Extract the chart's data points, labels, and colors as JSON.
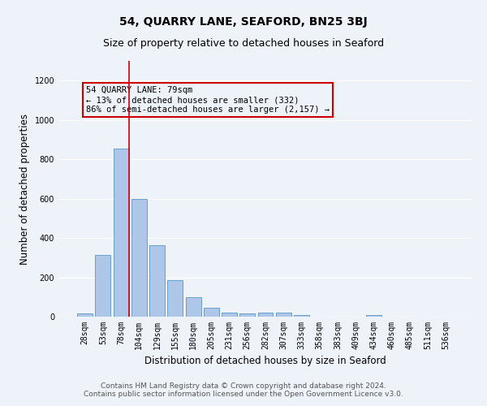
{
  "title": "54, QUARRY LANE, SEAFORD, BN25 3BJ",
  "subtitle": "Size of property relative to detached houses in Seaford",
  "xlabel": "Distribution of detached houses by size in Seaford",
  "ylabel": "Number of detached properties",
  "categories": [
    "28sqm",
    "53sqm",
    "78sqm",
    "104sqm",
    "129sqm",
    "155sqm",
    "180sqm",
    "205sqm",
    "231sqm",
    "256sqm",
    "282sqm",
    "307sqm",
    "333sqm",
    "358sqm",
    "383sqm",
    "409sqm",
    "434sqm",
    "460sqm",
    "485sqm",
    "511sqm",
    "536sqm"
  ],
  "values": [
    15,
    315,
    855,
    600,
    365,
    185,
    100,
    47,
    20,
    18,
    20,
    20,
    10,
    0,
    0,
    0,
    10,
    0,
    0,
    0,
    0
  ],
  "bar_color": "#aec6e8",
  "bar_edge_color": "#5a96c8",
  "bar_edge_width": 0.6,
  "ylim": [
    0,
    1300
  ],
  "yticks": [
    0,
    200,
    400,
    600,
    800,
    1000,
    1200
  ],
  "annotation_box_text": "54 QUARRY LANE: 79sqm\n← 13% of detached houses are smaller (332)\n86% of semi-detached houses are larger (2,157) →",
  "vline_x_index": 2,
  "vline_color": "#cc0000",
  "background_color": "#eef2f9",
  "grid_color": "#ffffff",
  "footer_line1": "Contains HM Land Registry data © Crown copyright and database right 2024.",
  "footer_line2": "Contains public sector information licensed under the Open Government Licence v3.0.",
  "title_fontsize": 10,
  "subtitle_fontsize": 9,
  "xlabel_fontsize": 8.5,
  "ylabel_fontsize": 8.5,
  "tick_fontsize": 7,
  "annotation_fontsize": 7.5,
  "footer_fontsize": 6.5
}
